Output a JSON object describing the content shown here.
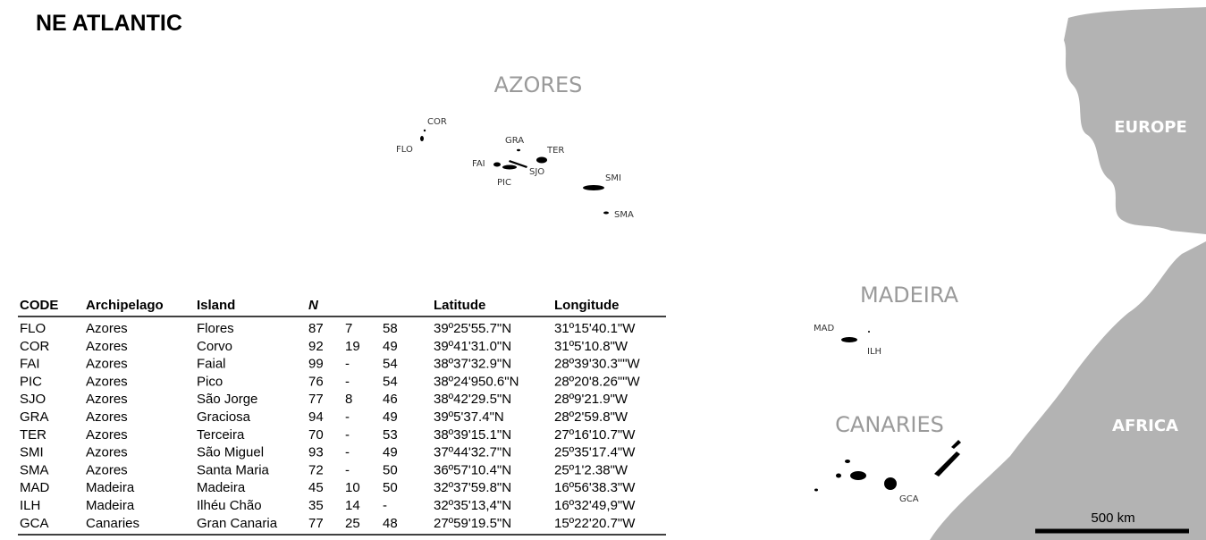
{
  "title": "NE ATLANTIC",
  "regions": [
    "AZORES",
    "MADEIRA",
    "CANARIES"
  ],
  "continents": [
    "EUROPE",
    "AFRICA"
  ],
  "islands": [
    "COR",
    "FLO",
    "GRA",
    "TER",
    "FAI",
    "SJO",
    "PIC",
    "SMI",
    "SMA",
    "MAD",
    "ILH",
    "GCA"
  ],
  "scale_bar": "500 km",
  "table": {
    "headers": [
      "CODE",
      "Archipelago",
      "Island",
      "N",
      "Latitude",
      "Longitude"
    ],
    "rows": [
      [
        "FLO",
        "Azores",
        "Flores",
        87,
        7,
        58,
        "39º25'55.7\"N",
        "31º15'40.1\"W"
      ],
      [
        "COR",
        "Azores",
        "Corvo",
        92,
        19,
        49,
        "39º41'31.0\"N",
        "31º5'10.8\"W"
      ],
      [
        "FAI",
        "Azores",
        "Faial",
        99,
        "-",
        54,
        "38º37'32.9\"N",
        "28º39'30.3\"\"W"
      ],
      [
        "PIC",
        "Azores",
        "Pico",
        76,
        "-",
        54,
        "38º24'950.6\"N",
        "28º20'8.26\"\"W"
      ],
      [
        "SJO",
        "Azores",
        "São Jorge",
        77,
        8,
        46,
        "38º42'29.5\"N",
        "28º9'21.9\"W"
      ],
      [
        "GRA",
        "Azores",
        "Graciosa",
        94,
        "-",
        49,
        "39º5'37.4\"N",
        "28º2'59.8\"W"
      ],
      [
        "TER",
        "Azores",
        "Terceira",
        70,
        "-",
        53,
        "38º39'15.1\"N",
        "27º16'10.7\"W"
      ],
      [
        "SMI",
        "Azores",
        "São Miguel",
        93,
        "-",
        49,
        "37º44'32.7\"N",
        "25º35'17.4\"W"
      ],
      [
        "SMA",
        "Azores",
        "Santa Maria",
        72,
        "-",
        50,
        "36º57'10.4\"N",
        "25º1'2.38\"W"
      ],
      [
        "MAD",
        "Madeira",
        "Madeira",
        45,
        10,
        50,
        "32º37'59.8\"N",
        "16º56'38.3\"W"
      ],
      [
        "ILH",
        "Madeira",
        "Ilhéu Chão",
        35,
        14,
        "-",
        "32º35'13,4\"N",
        "16º32'49,9\"W"
      ],
      [
        "GCA",
        "Canaries",
        "Gran Canaria",
        77,
        25,
        48,
        "27º59'19.5\"N",
        "15º22'20.7\"W"
      ]
    ]
  }
}
